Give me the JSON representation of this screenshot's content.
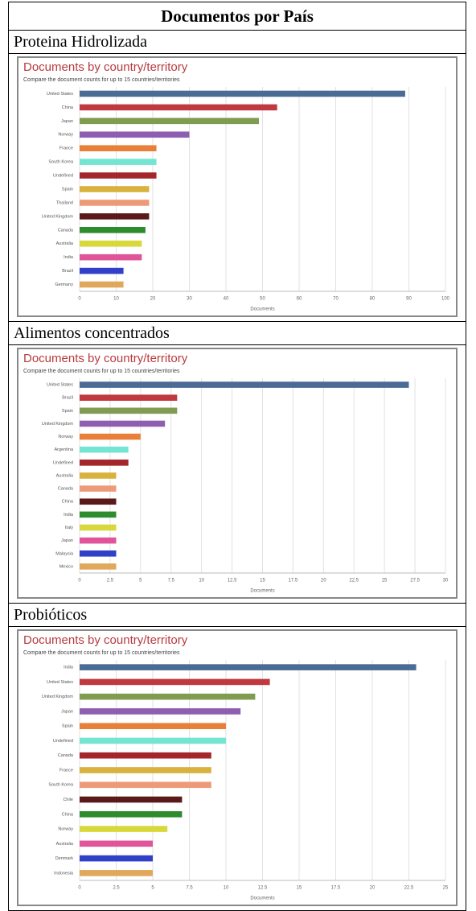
{
  "table": {
    "title": "Documentos por País",
    "sections": [
      "Proteina Hidrolizada",
      "Alimentos concentrados",
      "Probióticos"
    ]
  },
  "chart_data": [
    {
      "type": "bar",
      "orientation": "horizontal",
      "title": "Documents by country/territory",
      "subtitle": "Compare the document counts for up to 15 countries/territories",
      "x_label": "Documents",
      "categories": [
        "United States",
        "China",
        "Japan",
        "Norway",
        "France",
        "South Korea",
        "Undefined",
        "Spain",
        "Thailand",
        "United Kingdom",
        "Canada",
        "Australia",
        "India",
        "Brazil",
        "Germany"
      ],
      "values": [
        89,
        54,
        49,
        30,
        21,
        21,
        21,
        19,
        19,
        19,
        18,
        17,
        17,
        12,
        12
      ],
      "colors": [
        "#4a6b94",
        "#c0393f",
        "#7f9c50",
        "#8e5eb0",
        "#e8803a",
        "#74e5d3",
        "#a3262a",
        "#d8b23c",
        "#ec9a78",
        "#5b1a1a",
        "#2e8b2e",
        "#d8d83a",
        "#e0559a",
        "#3040c8",
        "#e0a85a"
      ],
      "xlim": [
        0,
        100
      ],
      "xticks": [
        0,
        10,
        20,
        30,
        40,
        50,
        60,
        70,
        80,
        90,
        100
      ],
      "grid": true
    },
    {
      "type": "bar",
      "orientation": "horizontal",
      "title": "Documents by country/territory",
      "subtitle": "Compare the document counts for up to 15 countries/territories",
      "x_label": "Documents",
      "categories": [
        "United States",
        "Brazil",
        "Spain",
        "United Kingdom",
        "Norway",
        "Argentina",
        "Undefined",
        "Australia",
        "Canada",
        "China",
        "India",
        "Italy",
        "Japan",
        "Malaysia",
        "Mexico"
      ],
      "values": [
        27,
        8,
        8,
        7,
        5,
        4,
        4,
        3,
        3,
        3,
        3,
        3,
        3,
        3,
        3
      ],
      "colors": [
        "#4a6b94",
        "#c0393f",
        "#7f9c50",
        "#8e5eb0",
        "#e8803a",
        "#74e5d3",
        "#a3262a",
        "#d8b23c",
        "#ec9a78",
        "#5b1a1a",
        "#2e8b2e",
        "#d8d83a",
        "#e0559a",
        "#3040c8",
        "#e0a85a"
      ],
      "xlim": [
        0,
        30
      ],
      "xticks": [
        0,
        2.5,
        5,
        7.5,
        10,
        12.5,
        15,
        17.5,
        20,
        22.5,
        25,
        27.5,
        30
      ],
      "grid": true
    },
    {
      "type": "bar",
      "orientation": "horizontal",
      "title": "Documents by country/territory",
      "subtitle": "Compare the document counts for up to 15 countries/territories",
      "x_label": "Documents",
      "categories": [
        "India",
        "United States",
        "United Kingdom",
        "Japan",
        "Spain",
        "Undefined",
        "Canada",
        "France",
        "South Korea",
        "Chile",
        "China",
        "Norway",
        "Australia",
        "Denmark",
        "Indonesia"
      ],
      "values": [
        23,
        13,
        12,
        11,
        10,
        10,
        9,
        9,
        9,
        7,
        7,
        6,
        5,
        5,
        5
      ],
      "colors": [
        "#4a6b94",
        "#c0393f",
        "#7f9c50",
        "#8e5eb0",
        "#e8803a",
        "#74e5d3",
        "#a3262a",
        "#d8b23c",
        "#ec9a78",
        "#5b1a1a",
        "#2e8b2e",
        "#d8d83a",
        "#e0559a",
        "#3040c8",
        "#e0a85a"
      ],
      "xlim": [
        0,
        25
      ],
      "xticks": [
        0,
        2.5,
        5,
        7.5,
        10,
        12.5,
        15,
        17.5,
        20,
        22.5,
        25
      ],
      "grid": true
    }
  ]
}
